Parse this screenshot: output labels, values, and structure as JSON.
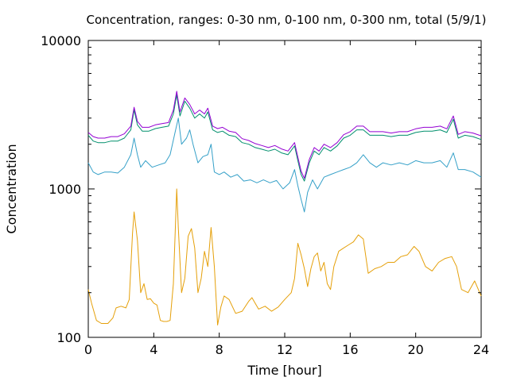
{
  "chart_data": {
    "type": "line",
    "title": "Concentration, ranges: 0-30 nm, 0-100 nm, 0-300 nm, total (5/9/1)",
    "xlabel": "Time [hour]",
    "ylabel": "Concentration",
    "xlim": [
      0,
      24
    ],
    "ylim": [
      100,
      10000
    ],
    "yscale": "log",
    "grid": false,
    "x_ticks": [
      "0",
      "4",
      "8",
      "12",
      "16",
      "20",
      "24"
    ],
    "y_ticks": [
      "100",
      "1000",
      "10000"
    ],
    "series": [
      {
        "color": "#e5a00a",
        "points": [
          [
            0,
            210
          ],
          [
            0.2,
            170
          ],
          [
            0.5,
            130
          ],
          [
            0.8,
            124
          ],
          [
            1.2,
            124
          ],
          [
            1.5,
            135
          ],
          [
            1.7,
            158
          ],
          [
            2.0,
            162
          ],
          [
            2.3,
            158
          ],
          [
            2.5,
            180
          ],
          [
            2.7,
            500
          ],
          [
            2.8,
            700
          ],
          [
            3.0,
            450
          ],
          [
            3.2,
            200
          ],
          [
            3.4,
            230
          ],
          [
            3.6,
            180
          ],
          [
            3.8,
            182
          ],
          [
            4.0,
            170
          ],
          [
            4.2,
            165
          ],
          [
            4.4,
            130
          ],
          [
            4.6,
            128
          ],
          [
            4.8,
            128
          ],
          [
            5.0,
            130
          ],
          [
            5.2,
            230
          ],
          [
            5.4,
            1000
          ],
          [
            5.5,
            550
          ],
          [
            5.7,
            200
          ],
          [
            5.9,
            250
          ],
          [
            6.1,
            480
          ],
          [
            6.3,
            540
          ],
          [
            6.5,
            400
          ],
          [
            6.7,
            200
          ],
          [
            6.9,
            250
          ],
          [
            7.1,
            380
          ],
          [
            7.3,
            300
          ],
          [
            7.5,
            550
          ],
          [
            7.7,
            300
          ],
          [
            7.9,
            121
          ],
          [
            8.1,
            160
          ],
          [
            8.3,
            190
          ],
          [
            8.6,
            180
          ],
          [
            9.0,
            145
          ],
          [
            9.4,
            150
          ],
          [
            9.8,
            175
          ],
          [
            10.0,
            185
          ],
          [
            10.4,
            155
          ],
          [
            10.8,
            162
          ],
          [
            11.2,
            150
          ],
          [
            11.6,
            160
          ],
          [
            12.0,
            180
          ],
          [
            12.4,
            200
          ],
          [
            12.6,
            250
          ],
          [
            12.8,
            430
          ],
          [
            13.0,
            360
          ],
          [
            13.2,
            290
          ],
          [
            13.4,
            220
          ],
          [
            13.6,
            290
          ],
          [
            13.8,
            350
          ],
          [
            14.0,
            370
          ],
          [
            14.2,
            280
          ],
          [
            14.4,
            320
          ],
          [
            14.6,
            230
          ],
          [
            14.8,
            210
          ],
          [
            15.0,
            300
          ],
          [
            15.3,
            380
          ],
          [
            15.6,
            400
          ],
          [
            15.9,
            420
          ],
          [
            16.2,
            440
          ],
          [
            16.5,
            490
          ],
          [
            16.8,
            460
          ],
          [
            17.1,
            270
          ],
          [
            17.5,
            290
          ],
          [
            17.9,
            300
          ],
          [
            18.3,
            320
          ],
          [
            18.7,
            320
          ],
          [
            19.1,
            350
          ],
          [
            19.5,
            360
          ],
          [
            19.9,
            410
          ],
          [
            20.2,
            380
          ],
          [
            20.6,
            300
          ],
          [
            21.0,
            280
          ],
          [
            21.4,
            320
          ],
          [
            21.8,
            340
          ],
          [
            22.2,
            350
          ],
          [
            22.5,
            300
          ],
          [
            22.8,
            210
          ],
          [
            23.2,
            200
          ],
          [
            23.6,
            240
          ],
          [
            24.0,
            190
          ]
        ]
      },
      {
        "color": "#35a0c8",
        "points": [
          [
            0,
            1500
          ],
          [
            0.3,
            1300
          ],
          [
            0.6,
            1250
          ],
          [
            1.0,
            1300
          ],
          [
            1.4,
            1300
          ],
          [
            1.8,
            1280
          ],
          [
            2.2,
            1400
          ],
          [
            2.6,
            1700
          ],
          [
            2.8,
            2200
          ],
          [
            3.0,
            1700
          ],
          [
            3.2,
            1400
          ],
          [
            3.5,
            1550
          ],
          [
            3.9,
            1400
          ],
          [
            4.3,
            1450
          ],
          [
            4.7,
            1500
          ],
          [
            5.0,
            1700
          ],
          [
            5.3,
            2400
          ],
          [
            5.5,
            3000
          ],
          [
            5.7,
            2000
          ],
          [
            6.0,
            2200
          ],
          [
            6.2,
            2500
          ],
          [
            6.4,
            2000
          ],
          [
            6.7,
            1500
          ],
          [
            7.0,
            1650
          ],
          [
            7.3,
            1700
          ],
          [
            7.5,
            2000
          ],
          [
            7.7,
            1300
          ],
          [
            8.0,
            1250
          ],
          [
            8.3,
            1300
          ],
          [
            8.7,
            1200
          ],
          [
            9.1,
            1250
          ],
          [
            9.5,
            1130
          ],
          [
            9.9,
            1150
          ],
          [
            10.3,
            1100
          ],
          [
            10.7,
            1150
          ],
          [
            11.1,
            1100
          ],
          [
            11.5,
            1140
          ],
          [
            11.9,
            1000
          ],
          [
            12.3,
            1100
          ],
          [
            12.6,
            1350
          ],
          [
            12.8,
            1050
          ],
          [
            13.0,
            850
          ],
          [
            13.2,
            700
          ],
          [
            13.4,
            950
          ],
          [
            13.7,
            1150
          ],
          [
            14.0,
            1000
          ],
          [
            14.4,
            1200
          ],
          [
            14.8,
            1250
          ],
          [
            15.2,
            1300
          ],
          [
            15.6,
            1350
          ],
          [
            16.0,
            1400
          ],
          [
            16.4,
            1500
          ],
          [
            16.8,
            1700
          ],
          [
            17.2,
            1500
          ],
          [
            17.6,
            1400
          ],
          [
            18.0,
            1500
          ],
          [
            18.5,
            1450
          ],
          [
            19.0,
            1500
          ],
          [
            19.5,
            1450
          ],
          [
            20.0,
            1550
          ],
          [
            20.5,
            1500
          ],
          [
            21.0,
            1500
          ],
          [
            21.5,
            1550
          ],
          [
            21.9,
            1400
          ],
          [
            22.3,
            1750
          ],
          [
            22.6,
            1350
          ],
          [
            23.0,
            1350
          ],
          [
            23.5,
            1300
          ],
          [
            24.0,
            1200
          ]
        ]
      },
      {
        "color": "#008f6c",
        "points": [
          [
            0,
            2300
          ],
          [
            0.3,
            2100
          ],
          [
            0.6,
            2050
          ],
          [
            1.0,
            2050
          ],
          [
            1.4,
            2100
          ],
          [
            1.8,
            2100
          ],
          [
            2.2,
            2200
          ],
          [
            2.6,
            2500
          ],
          [
            2.8,
            3400
          ],
          [
            3.0,
            2700
          ],
          [
            3.3,
            2450
          ],
          [
            3.7,
            2450
          ],
          [
            4.1,
            2550
          ],
          [
            4.5,
            2600
          ],
          [
            4.9,
            2650
          ],
          [
            5.2,
            3200
          ],
          [
            5.4,
            4300
          ],
          [
            5.6,
            3100
          ],
          [
            5.9,
            3900
          ],
          [
            6.2,
            3500
          ],
          [
            6.5,
            3000
          ],
          [
            6.8,
            3200
          ],
          [
            7.1,
            3000
          ],
          [
            7.3,
            3300
          ],
          [
            7.6,
            2500
          ],
          [
            7.9,
            2400
          ],
          [
            8.2,
            2450
          ],
          [
            8.6,
            2300
          ],
          [
            9.0,
            2250
          ],
          [
            9.4,
            2050
          ],
          [
            9.8,
            2000
          ],
          [
            10.2,
            1900
          ],
          [
            10.6,
            1850
          ],
          [
            11.0,
            1800
          ],
          [
            11.4,
            1850
          ],
          [
            11.8,
            1750
          ],
          [
            12.2,
            1700
          ],
          [
            12.6,
            1950
          ],
          [
            12.8,
            1550
          ],
          [
            13.0,
            1250
          ],
          [
            13.2,
            1130
          ],
          [
            13.5,
            1500
          ],
          [
            13.8,
            1800
          ],
          [
            14.1,
            1700
          ],
          [
            14.4,
            1900
          ],
          [
            14.8,
            1800
          ],
          [
            15.2,
            1950
          ],
          [
            15.6,
            2200
          ],
          [
            16.0,
            2300
          ],
          [
            16.4,
            2500
          ],
          [
            16.8,
            2500
          ],
          [
            17.2,
            2300
          ],
          [
            17.6,
            2300
          ],
          [
            18.0,
            2300
          ],
          [
            18.5,
            2250
          ],
          [
            19.0,
            2300
          ],
          [
            19.5,
            2300
          ],
          [
            20.0,
            2400
          ],
          [
            20.5,
            2450
          ],
          [
            21.0,
            2450
          ],
          [
            21.5,
            2500
          ],
          [
            21.9,
            2400
          ],
          [
            22.3,
            2950
          ],
          [
            22.6,
            2200
          ],
          [
            23.0,
            2300
          ],
          [
            23.5,
            2250
          ],
          [
            24.0,
            2150
          ]
        ]
      },
      {
        "color": "#9400d3",
        "points": [
          [
            0,
            2400
          ],
          [
            0.3,
            2250
          ],
          [
            0.6,
            2200
          ],
          [
            1.0,
            2200
          ],
          [
            1.4,
            2250
          ],
          [
            1.8,
            2250
          ],
          [
            2.2,
            2350
          ],
          [
            2.6,
            2650
          ],
          [
            2.8,
            3550
          ],
          [
            3.0,
            2850
          ],
          [
            3.3,
            2600
          ],
          [
            3.7,
            2600
          ],
          [
            4.1,
            2700
          ],
          [
            4.5,
            2750
          ],
          [
            4.9,
            2800
          ],
          [
            5.2,
            3400
          ],
          [
            5.4,
            4550
          ],
          [
            5.6,
            3300
          ],
          [
            5.9,
            4100
          ],
          [
            6.2,
            3700
          ],
          [
            6.5,
            3200
          ],
          [
            6.8,
            3400
          ],
          [
            7.1,
            3200
          ],
          [
            7.3,
            3500
          ],
          [
            7.6,
            2650
          ],
          [
            7.9,
            2550
          ],
          [
            8.2,
            2600
          ],
          [
            8.6,
            2450
          ],
          [
            9.0,
            2400
          ],
          [
            9.4,
            2180
          ],
          [
            9.8,
            2120
          ],
          [
            10.2,
            2020
          ],
          [
            10.6,
            1960
          ],
          [
            11.0,
            1900
          ],
          [
            11.4,
            1960
          ],
          [
            11.8,
            1860
          ],
          [
            12.2,
            1800
          ],
          [
            12.6,
            2050
          ],
          [
            12.8,
            1640
          ],
          [
            13.0,
            1320
          ],
          [
            13.2,
            1180
          ],
          [
            13.5,
            1580
          ],
          [
            13.8,
            1900
          ],
          [
            14.1,
            1800
          ],
          [
            14.4,
            2000
          ],
          [
            14.8,
            1900
          ],
          [
            15.2,
            2050
          ],
          [
            15.6,
            2320
          ],
          [
            16.0,
            2430
          ],
          [
            16.4,
            2650
          ],
          [
            16.8,
            2650
          ],
          [
            17.2,
            2430
          ],
          [
            17.6,
            2430
          ],
          [
            18.0,
            2430
          ],
          [
            18.5,
            2380
          ],
          [
            19.0,
            2430
          ],
          [
            19.5,
            2430
          ],
          [
            20.0,
            2540
          ],
          [
            20.5,
            2600
          ],
          [
            21.0,
            2600
          ],
          [
            21.5,
            2650
          ],
          [
            21.9,
            2540
          ],
          [
            22.3,
            3100
          ],
          [
            22.6,
            2330
          ],
          [
            23.0,
            2430
          ],
          [
            23.5,
            2380
          ],
          [
            24.0,
            2280
          ]
        ]
      }
    ]
  }
}
